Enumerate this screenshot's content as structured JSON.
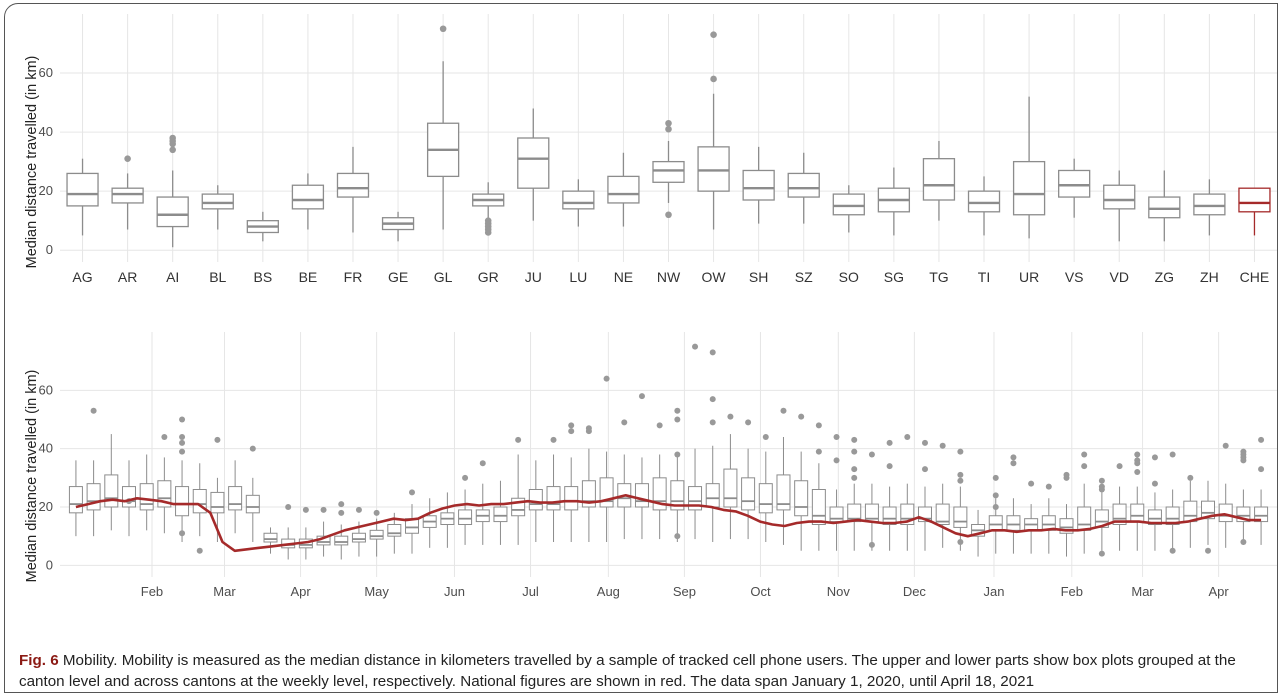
{
  "chart_data": [
    {
      "type": "box",
      "ylabel": "Median distance travelled (in km)",
      "xlabel": "",
      "ylim": [
        -4,
        80
      ],
      "yticks": [
        0,
        20,
        40,
        60
      ],
      "grid": true,
      "highlight_color": "#a52a2a",
      "box_color": "#8c8c8c",
      "categories": [
        "AG",
        "AR",
        "AI",
        "BL",
        "BS",
        "BE",
        "FR",
        "GE",
        "GL",
        "GR",
        "JU",
        "LU",
        "NE",
        "NW",
        "OW",
        "SH",
        "SZ",
        "SO",
        "SG",
        "TG",
        "TI",
        "UR",
        "VS",
        "VD",
        "ZG",
        "ZH",
        "CHE"
      ],
      "boxes": [
        {
          "min": 5,
          "q1": 15,
          "median": 19,
          "q3": 26,
          "max": 31,
          "outliers": []
        },
        {
          "min": 7,
          "q1": 16,
          "median": 19,
          "q3": 21,
          "max": 26,
          "outliers": [
            31
          ]
        },
        {
          "min": 1,
          "q1": 8,
          "median": 12,
          "q3": 18,
          "max": 27,
          "outliers": [
            34,
            36,
            37,
            38
          ]
        },
        {
          "min": 7,
          "q1": 14,
          "median": 16,
          "q3": 19,
          "max": 22,
          "outliers": []
        },
        {
          "min": 3,
          "q1": 6,
          "median": 8,
          "q3": 10,
          "max": 13,
          "outliers": []
        },
        {
          "min": 7,
          "q1": 14,
          "median": 17,
          "q3": 22,
          "max": 26,
          "outliers": []
        },
        {
          "min": 6,
          "q1": 18,
          "median": 21,
          "q3": 26,
          "max": 35,
          "outliers": []
        },
        {
          "min": 3,
          "q1": 7,
          "median": 9,
          "q3": 11,
          "max": 13,
          "outliers": []
        },
        {
          "min": 7,
          "q1": 25,
          "median": 34,
          "q3": 43,
          "max": 64,
          "outliers": [
            75
          ]
        },
        {
          "min": 11,
          "q1": 15,
          "median": 17,
          "q3": 19,
          "max": 23,
          "outliers": [
            6,
            7,
            8,
            9,
            10
          ]
        },
        {
          "min": 10,
          "q1": 21,
          "median": 31,
          "q3": 38,
          "max": 48,
          "outliers": []
        },
        {
          "min": 8,
          "q1": 14,
          "median": 16,
          "q3": 20,
          "max": 24,
          "outliers": []
        },
        {
          "min": 8,
          "q1": 16,
          "median": 19,
          "q3": 25,
          "max": 33,
          "outliers": []
        },
        {
          "min": 16,
          "q1": 23,
          "median": 27,
          "q3": 30,
          "max": 37,
          "outliers": [
            12,
            41,
            43
          ]
        },
        {
          "min": 7,
          "q1": 20,
          "median": 27,
          "q3": 35,
          "max": 53,
          "outliers": [
            58,
            73
          ]
        },
        {
          "min": 9,
          "q1": 17,
          "median": 21,
          "q3": 27,
          "max": 35,
          "outliers": []
        },
        {
          "min": 9,
          "q1": 18,
          "median": 21,
          "q3": 26,
          "max": 33,
          "outliers": []
        },
        {
          "min": 6,
          "q1": 12,
          "median": 15,
          "q3": 19,
          "max": 22,
          "outliers": []
        },
        {
          "min": 5,
          "q1": 13,
          "median": 17,
          "q3": 21,
          "max": 28,
          "outliers": []
        },
        {
          "min": 10,
          "q1": 17,
          "median": 22,
          "q3": 31,
          "max": 37,
          "outliers": []
        },
        {
          "min": 5,
          "q1": 13,
          "median": 16,
          "q3": 20,
          "max": 25,
          "outliers": []
        },
        {
          "min": 4,
          "q1": 12,
          "median": 19,
          "q3": 30,
          "max": 52,
          "outliers": []
        },
        {
          "min": 11,
          "q1": 18,
          "median": 22,
          "q3": 27,
          "max": 31,
          "outliers": []
        },
        {
          "min": 3,
          "q1": 14,
          "median": 17,
          "q3": 22,
          "max": 27,
          "outliers": []
        },
        {
          "min": 3,
          "q1": 11,
          "median": 14,
          "q3": 18,
          "max": 27,
          "outliers": []
        },
        {
          "min": 5,
          "q1": 12,
          "median": 15,
          "q3": 19,
          "max": 24,
          "outliers": []
        },
        {
          "min": 5,
          "q1": 13,
          "median": 16,
          "q3": 21,
          "max": 21,
          "outliers": []
        }
      ]
    },
    {
      "type": "box",
      "ylabel": "Median distance travelled (in km)",
      "xlabel": "",
      "ylim": [
        -4,
        80
      ],
      "yticks": [
        0,
        20,
        40,
        60
      ],
      "grid": true,
      "x_range_weeks": [
        -0.9,
        67.9
      ],
      "month_ticks": [
        {
          "label": "Feb",
          "week": 4.3
        },
        {
          "label": "Mar",
          "week": 8.4
        },
        {
          "label": "Apr",
          "week": 12.7
        },
        {
          "label": "May",
          "week": 17.0
        },
        {
          "label": "Jun",
          "week": 21.4
        },
        {
          "label": "Jul",
          "week": 25.7
        },
        {
          "label": "Aug",
          "week": 30.1
        },
        {
          "label": "Sep",
          "week": 34.4
        },
        {
          "label": "Oct",
          "week": 38.7
        },
        {
          "label": "Nov",
          "week": 43.1
        },
        {
          "label": "Dec",
          "week": 47.4
        },
        {
          "label": "Jan",
          "week": 51.9
        },
        {
          "label": "Feb",
          "week": 56.3
        },
        {
          "label": "Mar",
          "week": 60.3
        },
        {
          "label": "Apr",
          "week": 64.6
        }
      ],
      "weekly_q1": [
        18,
        19,
        20,
        20,
        19,
        20,
        17,
        18,
        18,
        19,
        18,
        8,
        6,
        6,
        7,
        7,
        8,
        9,
        10,
        11,
        13,
        14,
        14,
        15,
        15,
        17,
        19,
        19,
        19,
        20,
        20,
        20,
        20,
        19,
        19,
        19,
        20,
        20,
        19,
        18,
        19,
        17,
        14,
        15,
        15,
        15,
        14,
        14,
        15,
        14,
        13,
        10,
        12,
        12,
        12,
        12,
        11,
        12,
        13,
        14,
        15,
        14,
        14,
        15,
        16,
        15,
        15,
        15
      ],
      "weekly_median": [
        21,
        22,
        23,
        22,
        21,
        23,
        21,
        21,
        20,
        21,
        20,
        9,
        7,
        7,
        8,
        8,
        9,
        10,
        11,
        13,
        15,
        16,
        16,
        17,
        17,
        19,
        21,
        21,
        22,
        22,
        22,
        23,
        22,
        22,
        22,
        22,
        23,
        23,
        22,
        21,
        21,
        20,
        17,
        16,
        16,
        16,
        16,
        16,
        16,
        15,
        15,
        12,
        14,
        14,
        14,
        14,
        13,
        14,
        15,
        16,
        17,
        16,
        16,
        17,
        18,
        17,
        17,
        17
      ],
      "weekly_q3": [
        27,
        28,
        31,
        27,
        28,
        29,
        27,
        26,
        25,
        27,
        24,
        11,
        9,
        9,
        10,
        10,
        11,
        12,
        14,
        16,
        17,
        18,
        19,
        19,
        20,
        23,
        26,
        27,
        27,
        29,
        30,
        28,
        28,
        30,
        29,
        27,
        28,
        33,
        30,
        28,
        31,
        29,
        26,
        20,
        21,
        21,
        20,
        21,
        20,
        21,
        20,
        14,
        17,
        17,
        16,
        17,
        16,
        20,
        19,
        21,
        21,
        19,
        20,
        22,
        22,
        21,
        20,
        20
      ],
      "weekly_min": [
        10,
        10,
        12,
        10,
        12,
        11,
        8,
        10,
        8,
        11,
        8,
        4,
        2,
        2,
        3,
        2,
        3,
        3,
        4,
        4,
        6,
        6,
        7,
        7,
        7,
        7,
        8,
        8,
        8,
        8,
        8,
        9,
        9,
        9,
        8,
        9,
        8,
        9,
        9,
        8,
        7,
        5,
        5,
        5,
        5,
        5,
        5,
        5,
        5,
        6,
        5,
        3,
        4,
        4,
        4,
        4,
        3,
        4,
        5,
        5,
        5,
        5,
        5,
        6,
        7,
        6,
        7,
        7
      ],
      "weekly_max": [
        36,
        36,
        45,
        36,
        38,
        37,
        36,
        35,
        30,
        36,
        30,
        13,
        13,
        13,
        15,
        14,
        15,
        16,
        18,
        21,
        23,
        25,
        26,
        28,
        29,
        38,
        36,
        38,
        37,
        40,
        39,
        38,
        37,
        38,
        38,
        40,
        41,
        45,
        40,
        39,
        44,
        39,
        35,
        26,
        28,
        28,
        27,
        28,
        27,
        28,
        27,
        19,
        23,
        23,
        21,
        23,
        21,
        28,
        25,
        27,
        27,
        25,
        26,
        29,
        29,
        28,
        26,
        26
      ],
      "outliers": [
        [
          1,
          53
        ],
        [
          3,
          22
        ],
        [
          5,
          44
        ],
        [
          6,
          50
        ],
        [
          6,
          44
        ],
        [
          6,
          42
        ],
        [
          6,
          39
        ],
        [
          6,
          11
        ],
        [
          7,
          5
        ],
        [
          8,
          43
        ],
        [
          10,
          40
        ],
        [
          12,
          20
        ],
        [
          13,
          19
        ],
        [
          14,
          19
        ],
        [
          15,
          18
        ],
        [
          15,
          21
        ],
        [
          16,
          19
        ],
        [
          17,
          18
        ],
        [
          19,
          25
        ],
        [
          22,
          30
        ],
        [
          23,
          35
        ],
        [
          25,
          43
        ],
        [
          27,
          43
        ],
        [
          28,
          48
        ],
        [
          28,
          46
        ],
        [
          29,
          46
        ],
        [
          29,
          47
        ],
        [
          30,
          64
        ],
        [
          31,
          49
        ],
        [
          32,
          58
        ],
        [
          33,
          48
        ],
        [
          34,
          53
        ],
        [
          34,
          50
        ],
        [
          34,
          38
        ],
        [
          34,
          10
        ],
        [
          35,
          75
        ],
        [
          36,
          73
        ],
        [
          36,
          57
        ],
        [
          36,
          49
        ],
        [
          37,
          51
        ],
        [
          38,
          49
        ],
        [
          39,
          44
        ],
        [
          40,
          53
        ],
        [
          41,
          51
        ],
        [
          42,
          48
        ],
        [
          42,
          39
        ],
        [
          43,
          44
        ],
        [
          43,
          36
        ],
        [
          44,
          43
        ],
        [
          44,
          39
        ],
        [
          44,
          33
        ],
        [
          44,
          30
        ],
        [
          45,
          38
        ],
        [
          45,
          7
        ],
        [
          46,
          42
        ],
        [
          46,
          34
        ],
        [
          47,
          44
        ],
        [
          48,
          42
        ],
        [
          48,
          33
        ],
        [
          49,
          41
        ],
        [
          50,
          39
        ],
        [
          50,
          31
        ],
        [
          50,
          29
        ],
        [
          50,
          8
        ],
        [
          52,
          30
        ],
        [
          52,
          24
        ],
        [
          52,
          20
        ],
        [
          53,
          37
        ],
        [
          53,
          35
        ],
        [
          54,
          28
        ],
        [
          55,
          27
        ],
        [
          56,
          31
        ],
        [
          56,
          30
        ],
        [
          57,
          38
        ],
        [
          57,
          34
        ],
        [
          58,
          29
        ],
        [
          58,
          27
        ],
        [
          58,
          26
        ],
        [
          58,
          4
        ],
        [
          59,
          34
        ],
        [
          60,
          38
        ],
        [
          60,
          36
        ],
        [
          60,
          35
        ],
        [
          60,
          32
        ],
        [
          61,
          37
        ],
        [
          61,
          28
        ],
        [
          62,
          38
        ],
        [
          62,
          5
        ],
        [
          63,
          30
        ],
        [
          64,
          5
        ],
        [
          65,
          41
        ],
        [
          66,
          39
        ],
        [
          66,
          38
        ],
        [
          66,
          37
        ],
        [
          66,
          36
        ],
        [
          66,
          8
        ],
        [
          67,
          33
        ],
        [
          67,
          43
        ]
      ],
      "national_line_color": "#a52a2a",
      "national_line": [
        20,
        21,
        22,
        22.5,
        22,
        23,
        22.5,
        22,
        21,
        21,
        21,
        18,
        8,
        5,
        5.5,
        6,
        6.5,
        7,
        7.5,
        8,
        9,
        10.5,
        12,
        13,
        14,
        15,
        16,
        15.5,
        16,
        18,
        19.5,
        20.5,
        21,
        20.5,
        21,
        21,
        21.5,
        22,
        21.5,
        21.5,
        22,
        22,
        21.5,
        22,
        23,
        24,
        23,
        22,
        21,
        20.5,
        20.5,
        20.5,
        20,
        19,
        18.5,
        17,
        15,
        14,
        13.5,
        14.5,
        15,
        15,
        14.5,
        15,
        15.5,
        15,
        14.5,
        14.5,
        15,
        16.5,
        15,
        13,
        11,
        10,
        11,
        12,
        12,
        11.5,
        12,
        12,
        12.5,
        12,
        12,
        12.5,
        13.5,
        15,
        15,
        15,
        14.5,
        14.5,
        14.5,
        15,
        16,
        17,
        17.5,
        16.5,
        15.5,
        15.5
      ]
    }
  ],
  "caption": {
    "label": "Fig. 6",
    "text": "Mobility. Mobility is measured as the median distance in kilometers travelled by a sample of tracked cell phone users. The upper and lower parts show box plots grouped at the canton level and across cantons at the weekly level, respectively. National figures are shown in red. The data span January 1, 2020, until April 18, 2021"
  }
}
